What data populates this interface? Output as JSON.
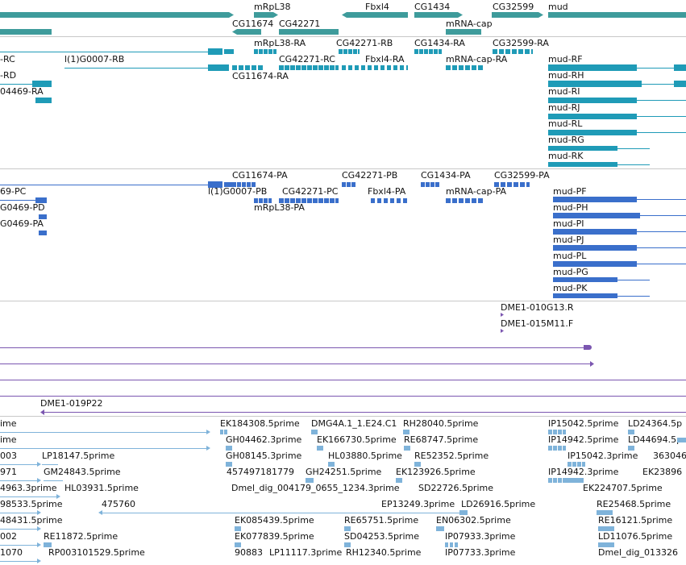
{
  "colors": {
    "gene": "#3e9b9b",
    "transcript": "#1f9bb7",
    "protein": "#3a6fcb",
    "clone": "#7b56b0",
    "est": "#7fb3da",
    "divider": "#c8c8c8"
  },
  "tracks": {
    "genes": {
      "labels": [
        "mRpL38",
        "Fbxl4",
        "CG1434",
        "CG32599",
        "mud",
        "CG11674",
        "CG42271",
        "mRNA-cap"
      ]
    },
    "transcripts": {
      "labels": [
        "-RC",
        "l(1)G0007-RB",
        "-RD",
        "04469-RA",
        "mRpL38-RA",
        "CG42271-RB",
        "CG1434-RA",
        "CG32599-RA",
        "CG42271-RC",
        "Fbxl4-RA",
        "mRNA-cap-RA",
        "CG11674-RA",
        "mud-RF",
        "mud-RH",
        "mud-RI",
        "mud-RJ",
        "mud-RL",
        "mud-RG",
        "mud-RK"
      ]
    },
    "proteins": {
      "labels": [
        "CG11674-PA",
        "CG42271-PB",
        "CG1434-PA",
        "CG32599-PA",
        "69-PC",
        "l(1)G0007-PB",
        "CG42271-PC",
        "Fbxl4-PA",
        "mRNA-cap-PA",
        "G0469-PD",
        "mRpL38-PA",
        "G0469-PA",
        "mud-PF",
        "mud-PH",
        "mud-PI",
        "mud-PJ",
        "mud-PL",
        "mud-PG",
        "mud-PK"
      ]
    },
    "clones": {
      "labels": [
        "DME1-010G13.R",
        "DME1-015M11.F",
        "DME1-019P22"
      ]
    },
    "ests": {
      "labels": [
        "ime",
        "EK184308.5prime",
        "DMG4A.1_1.E24.C1",
        "RH28040.5prime",
        "IP15042.5prime",
        "LD24364.5p",
        "ime",
        "GH04462.3prime",
        "EK166730.5prime",
        "RE68747.5prime",
        "IP14942.5prime",
        "LD44694.5p",
        "003",
        "LP18147.5prime",
        "GH08145.3prime",
        "HL03880.5prime",
        "RE52352.5prime",
        "IP15042.3prime",
        "363046",
        "971",
        "GM24843.5prime",
        "457497181779",
        "GH24251.5prime",
        "EK123926.5prime",
        "IP14942.3prime",
        "EK23896",
        "4963.3prime",
        "HL03931.5prime",
        "Dmel_dig_004179_0655_1234.3prime",
        "SD22726.5prime",
        "EK224707.5prime",
        "98533.5prime",
        "EP13249.3prime",
        "LD26916.5prime",
        "RE25468.5prime",
        "48431.5prime",
        "475760",
        "EK085439.5prime",
        "RE65751.5prime",
        "EN06302.5prime",
        "RE16121.5prime",
        "002",
        "RE11872.5prime",
        "EK077839.5prime",
        "SD04253.5prime",
        "IP07933.3prime",
        "LD11076.5prime",
        "1070",
        "RP003101529.5prime",
        "90883",
        "LP11117.3prime",
        "RH12340.5prime",
        "IP07733.3prime",
        "Dmel_dig_013326"
      ]
    }
  }
}
